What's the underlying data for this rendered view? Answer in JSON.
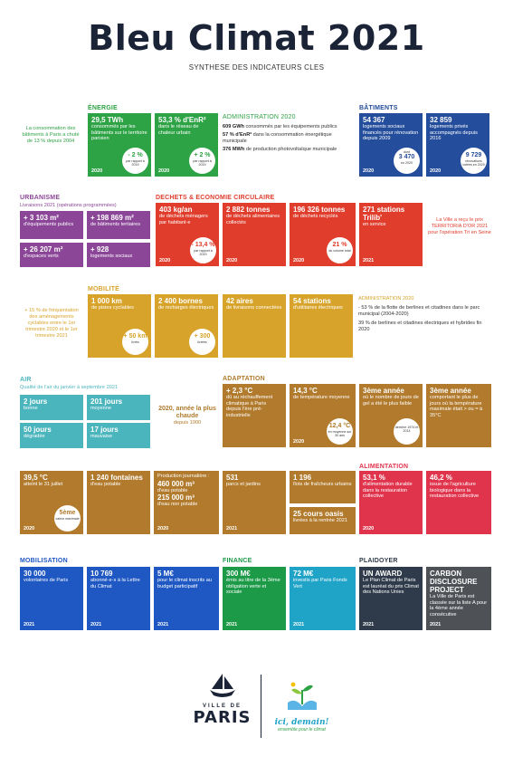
{
  "header": {
    "title": "Bleu Climat 2021",
    "subtitle": "SYNTHESE DES INDICATEURS CLES"
  },
  "colors": {
    "energie": "#2ea346",
    "batiments": "#244d9b",
    "urbanisme": "#8b4698",
    "dechets": "#e03d2c",
    "mobilite": "#d7a32a",
    "air": "#4bb5bd",
    "adaptation": "#b17a2c",
    "alimentation": "#e0344d",
    "mobilisation": "#1f57c3",
    "finance": "#1c9a48",
    "plaidoyer": "#2f3b4b"
  },
  "energie": {
    "label": "ÉNERGIE",
    "note": "La consommation des bâtiments à Paris a chuté de 13 % depuis 2004",
    "t1": {
      "big": "29,5 TWh",
      "txt": "consommés par les bâtiments sur le territoire parisien",
      "year": "2020",
      "circ_big": "- 2 %",
      "circ_small": "par rapport à 2019"
    },
    "t2": {
      "big": "53,3 % d'EnR²",
      "txt": "dans le réseau de chaleur urbain",
      "year": "2020",
      "circ_big": "+ 2 %",
      "circ_small": "par rapport à 2019"
    },
    "admin": {
      "label": "ADMINISTRATION 2020",
      "l1b": "609 GWh",
      "l1": "consommés par les équipements publics",
      "l2b": "57 % d'EnR²",
      "l2": "dans la consommation énergétique municipale",
      "l3b": "376 MWh",
      "l3": "de production photovoltaïque municipale"
    }
  },
  "batiments": {
    "label": "BÂTIMENTS",
    "t1": {
      "big": "54 367",
      "txt": "logements sociaux financés pour rénovation depuis 2009",
      "year": "2020",
      "circ_top": "dont",
      "circ_big": "3 470",
      "circ_small": "en 2020"
    },
    "t2": {
      "big": "32 859",
      "txt": "logements privés accompagnés depuis 2016",
      "year": "2020",
      "circ_big": "9 729",
      "circ_small": "rénovations votées en 2020"
    }
  },
  "urbanisme": {
    "label": "URBANISME",
    "sub": "Livraisons 2021 (opérations programmées)",
    "t1": {
      "big": "+ 3 103 m²",
      "txt": "d'équipements publics"
    },
    "t2": {
      "big": "+ 198 869 m²",
      "txt": "de bâtiments tertiaires"
    },
    "t3": {
      "big": "+ 26 207 m²",
      "txt": "d'espaces verts"
    },
    "t4": {
      "big": "+ 928",
      "txt": "logements sociaux"
    }
  },
  "dechets": {
    "label": "DECHETS & ECONOMIE CIRCULAIRE",
    "t1": {
      "big": "403 kg/an",
      "txt": "de déchets ménagers par habitant·e",
      "year": "2020",
      "circ_big": "- 13,4 %",
      "circ_small": "par rapport à 2019"
    },
    "t2": {
      "big": "2 882 tonnes",
      "txt": "de déchets alimentaires collectés",
      "year": "2020"
    },
    "t3": {
      "big": "196 326 tonnes",
      "txt": "de déchets recyclés",
      "year": "2020",
      "circ_big": "21 %",
      "circ_small": "du volume total"
    },
    "t4": {
      "big": "271 stations Trilib'",
      "txt": "en service",
      "year": "2021"
    },
    "note": "La Ville a reçu le prix TERRITORIA D'OR 2021 pour l'opération Tri en Seine"
  },
  "mobilite": {
    "label": "MOBILITÉ",
    "note": "+ 15 % de fréquentation des aménagements cyclables entre le 1er trimestre 2020 et le 1er trimestre 2021",
    "t1": {
      "big": "1 000 km",
      "txt": "de pistes cyclables",
      "circ_big": "+ 50 km",
      "circ_small": "livrés"
    },
    "t2": {
      "big": "2 400 bornes",
      "txt": "de recharges électriques",
      "circ_big": "+ 300",
      "circ_small": "livrées"
    },
    "t3": {
      "big": "42 aires",
      "txt": "de livraisons connectées"
    },
    "t4": {
      "big": "54 stations",
      "txt": "d'utilitaires électriques"
    },
    "admin": {
      "label": "ADMINISTRATION 2020",
      "l1": "- 53 % de la flotte de berlines et citadines dans le parc municipal (2004-2020)",
      "l2": "39 % de berlines et citadines électriques et hybrides fin 2020"
    }
  },
  "air": {
    "label": "AIR",
    "sub": "Qualité de l'air du janvier à septembre 2021",
    "t1": {
      "big": "2 jours",
      "txt": "bonne"
    },
    "t2": {
      "big": "201 jours",
      "txt": "moyenne"
    },
    "t3": {
      "big": "50 jours",
      "txt": "dégradée"
    },
    "t4": {
      "big": "17 jours",
      "txt": "mauvaise"
    },
    "note_big": "2020, année la plus chaude",
    "note_small": "depuis 1900"
  },
  "adaptation": {
    "label": "ADAPTATION",
    "t1": {
      "big": "+ 2,3 °C",
      "txt": "dû au réchauffement climatique à Paris depuis l'ère pré-industrielle"
    },
    "t2": {
      "big": "14,3 °C",
      "txt": "de température moyenne",
      "year": "2020",
      "circ_big": "12,4 °C",
      "circ_small": "en moyenne sur 30 ans"
    },
    "t3": {
      "big": "3ème année",
      "txt": "où le nombre de jours de gel a été le plus faible",
      "circ_small": "derrière 1974 et 2014"
    },
    "t4": {
      "big": "3ème année",
      "txt": "comportant le plus de jours où la température maximale était > ou = à 35°C"
    },
    "t5": {
      "big": "39,5 °C",
      "txt": "atteint le 31 juillet",
      "year": "2020",
      "circ_big": "5ème",
      "circ_small": "valeur maximale"
    },
    "t6": {
      "big": "1 240 fontaines",
      "txt": "d'eau potable"
    },
    "t7": {
      "head": "Production journalière :",
      "b1": "460 000 m³",
      "l1": "d'eau potable",
      "b2": "215 000 m³",
      "l2": "d'eau non potable",
      "year": "2020"
    },
    "t8": {
      "big": "531",
      "txt": "parcs et jardins",
      "year": "2021"
    },
    "t9": {
      "big": "1 196",
      "txt": "îlots de fraîcheurs urbains"
    },
    "t10": {
      "big": "25 cours oasis",
      "txt": "livrées à la rentrée 2021"
    }
  },
  "alimentation": {
    "label": "ALIMENTATION",
    "t1": {
      "big": "53,1 %",
      "txt": "d'alimentation durable dans la restauration collective",
      "year": "2020"
    },
    "t2": {
      "big": "46,2 %",
      "txt": "issue de l'agriculture biologique dans la restauration collective"
    }
  },
  "mobilisation": {
    "label": "MOBILISATION",
    "t1": {
      "big": "30 000",
      "txt": "volontaires de Paris",
      "year": "2021"
    },
    "t2": {
      "big": "10 769",
      "txt": "abonné·e·s à la Lettre du Climat",
      "year": "2021"
    },
    "t3": {
      "big": "5 M€",
      "txt": "pour le climat inscrits au budget participatif",
      "year": "2021"
    }
  },
  "finance": {
    "label": "FINANCE",
    "t1": {
      "big": "300 M€",
      "txt": "émis au titre de la 3ème obligation verte et sociale",
      "year": "2021"
    },
    "t2": {
      "big": "72 M€",
      "txt": "investis par Paris Fonds Vert",
      "year": "2021"
    }
  },
  "plaidoyer": {
    "label": "PLAIDOYER",
    "t1": {
      "big": "UN AWARD",
      "txt": "Le Plan Climat de Paris est lauréat du prix Climat des Nations Unies",
      "year": "2021"
    },
    "t2": {
      "big": "CARBON DISCLOSURE PROJECT",
      "txt": "La Ville de Paris est classée sur la liste A pour la 4ème année consécutive",
      "year": "2021"
    }
  },
  "footer": {
    "ville_de": "VILLE DE",
    "paris": "PARIS",
    "tagline1": "ici, demain!",
    "tagline2": "ensemble pour le climat",
    "paris_logo_icon": "ship-logo-icon",
    "climat_logo_icon": "hands-plant-icon"
  }
}
